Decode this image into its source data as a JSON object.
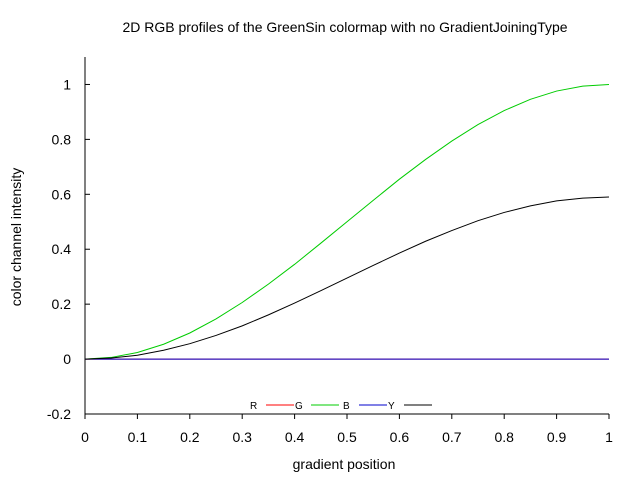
{
  "chart_data": {
    "type": "line",
    "title": "2D RGB profiles of the GreenSin colormap with no GradientJoiningType",
    "xlabel": "gradient position",
    "ylabel": "color channel intensity",
    "xlim": [
      0,
      1
    ],
    "ylim": [
      -0.2,
      1.1
    ],
    "xticks": [
      "0",
      "0.1",
      "0.2",
      "0.3",
      "0.4",
      "0.5",
      "0.6",
      "0.7",
      "0.8",
      "0.9",
      "1"
    ],
    "yticks": [
      "-0.2",
      "0",
      "0.2",
      "0.4",
      "0.6",
      "0.8",
      "1"
    ],
    "grid": false,
    "legend_position": "bottom-center",
    "x": [
      0,
      0.05,
      0.1,
      0.15,
      0.2,
      0.25,
      0.3,
      0.35,
      0.4,
      0.45,
      0.5,
      0.55,
      0.6,
      0.65,
      0.7,
      0.75,
      0.8,
      0.85,
      0.9,
      0.95,
      1
    ],
    "series": [
      {
        "name": "R",
        "color": "#ff0000",
        "values": [
          0,
          0,
          0,
          0,
          0,
          0,
          0,
          0,
          0,
          0,
          0,
          0,
          0,
          0,
          0,
          0,
          0,
          0,
          0,
          0,
          0
        ]
      },
      {
        "name": "G",
        "color": "#00cc00",
        "values": [
          0,
          0.006,
          0.024,
          0.054,
          0.095,
          0.146,
          0.206,
          0.273,
          0.345,
          0.422,
          0.5,
          0.578,
          0.655,
          0.727,
          0.794,
          0.854,
          0.905,
          0.946,
          0.976,
          0.994,
          1
        ]
      },
      {
        "name": "B",
        "color": "#0000cc",
        "values": [
          0,
          0,
          0,
          0,
          0,
          0,
          0,
          0,
          0,
          0,
          0,
          0,
          0,
          0,
          0,
          0,
          0,
          0,
          0,
          0,
          0
        ]
      },
      {
        "name": "Y",
        "color": "#000000",
        "values": [
          0,
          0.004,
          0.014,
          0.032,
          0.056,
          0.086,
          0.121,
          0.161,
          0.204,
          0.249,
          0.295,
          0.341,
          0.386,
          0.429,
          0.468,
          0.504,
          0.534,
          0.558,
          0.576,
          0.586,
          0.59
        ]
      }
    ]
  }
}
